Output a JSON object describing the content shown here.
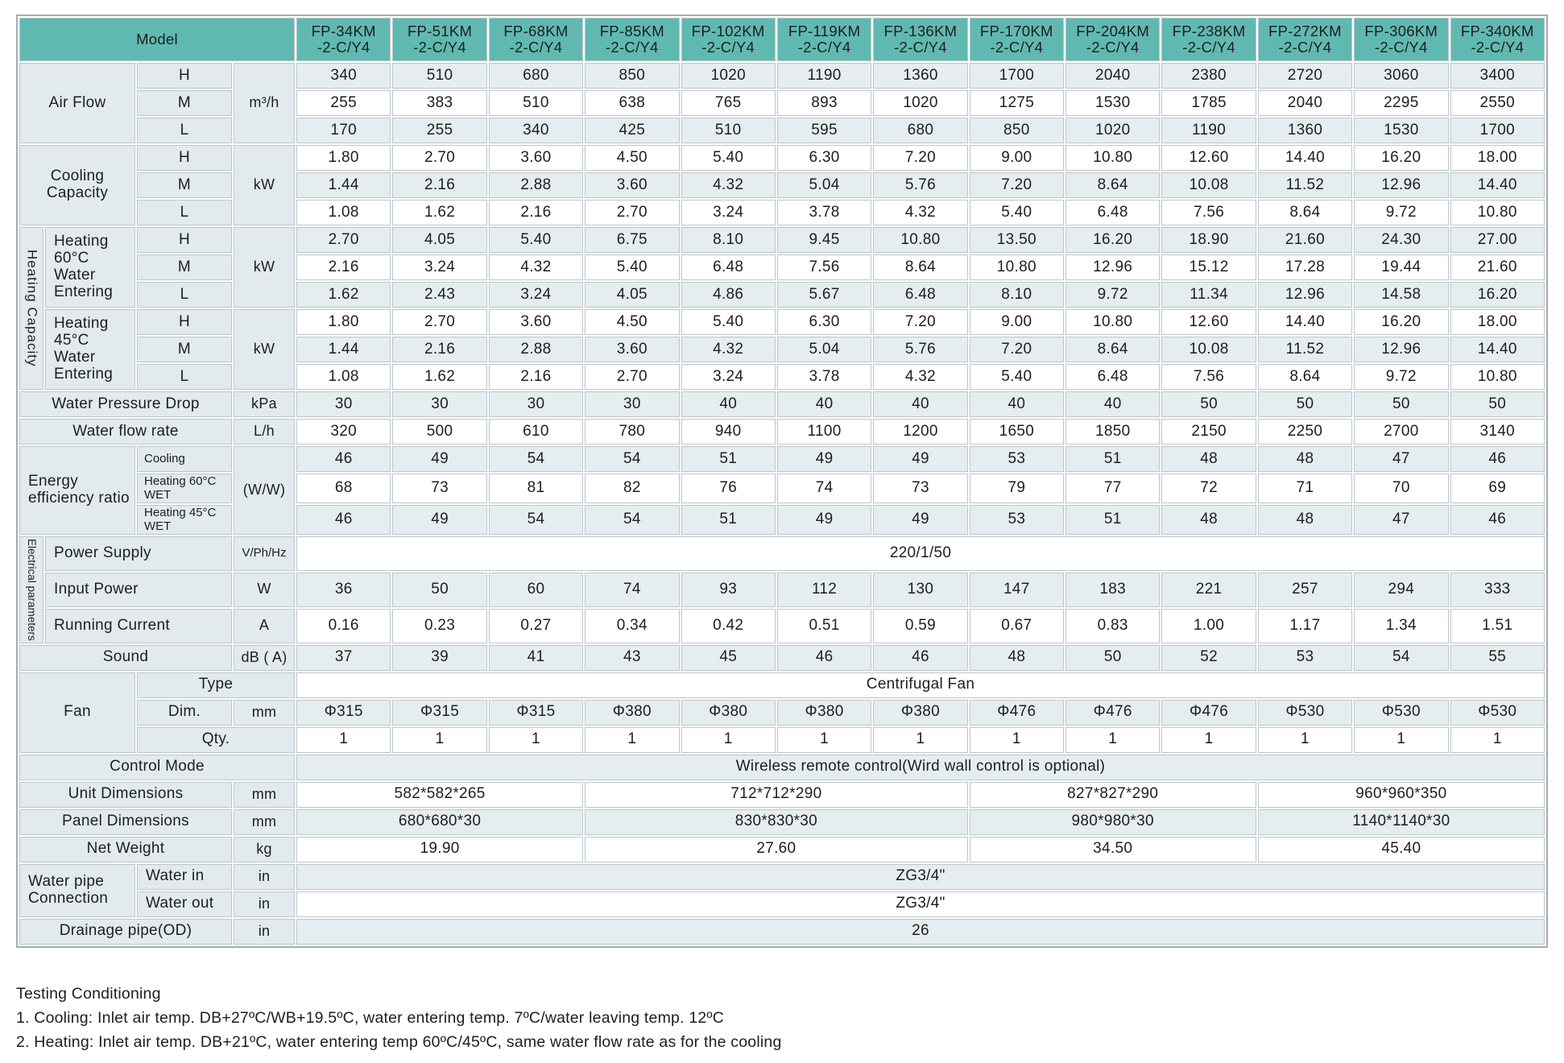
{
  "colors": {
    "header_teal": "#60b9b1",
    "label_bg": "#e2eaee",
    "row_shade": "#e6edf0",
    "row_plain": "#ffffff",
    "grid_border": "#bdc6ca"
  },
  "table": {
    "model_label": "Model",
    "models": [
      "FP-34KM\n-2-C/Y4",
      "FP-51KM\n-2-C/Y4",
      "FP-68KM\n-2-C/Y4",
      "FP-85KM\n-2-C/Y4",
      "FP-102KM\n-2-C/Y4",
      "FP-119KM\n-2-C/Y4",
      "FP-136KM\n-2-C/Y4",
      "FP-170KM\n-2-C/Y4",
      "FP-204KM\n-2-C/Y4",
      "FP-238KM\n-2-C/Y4",
      "FP-272KM\n-2-C/Y4",
      "FP-306KM\n-2-C/Y4",
      "FP-340KM\n-2-C/Y4"
    ],
    "rows": [
      {
        "name": "row-air-flow-h",
        "labels": [
          {
            "t": "Air Flow",
            "cs": 2,
            "rs": 3
          },
          {
            "t": "H"
          },
          {
            "t": "m³/h",
            "rs": 3,
            "cls": "unit",
            "n": "unit-cell"
          }
        ],
        "values": [
          "340",
          "510",
          "680",
          "850",
          "1020",
          "1190",
          "1360",
          "1700",
          "2040",
          "2380",
          "2720",
          "3060",
          "3400"
        ]
      },
      {
        "name": "row-air-flow-m",
        "labels": [
          {
            "t": "M"
          }
        ],
        "values": [
          "255",
          "383",
          "510",
          "638",
          "765",
          "893",
          "1020",
          "1275",
          "1530",
          "1785",
          "2040",
          "2295",
          "2550"
        ]
      },
      {
        "name": "row-air-flow-l",
        "labels": [
          {
            "t": "L"
          }
        ],
        "values": [
          "170",
          "255",
          "340",
          "425",
          "510",
          "595",
          "680",
          "850",
          "1020",
          "1190",
          "1360",
          "1530",
          "1700"
        ]
      },
      {
        "name": "row-cooling-h",
        "labels": [
          {
            "t": "Cooling Capacity",
            "cs": 2,
            "rs": 3
          },
          {
            "t": "H"
          },
          {
            "t": "kW",
            "rs": 3,
            "cls": "unit",
            "n": "unit-cell"
          }
        ],
        "values": [
          "1.80",
          "2.70",
          "3.60",
          "4.50",
          "5.40",
          "6.30",
          "7.20",
          "9.00",
          "10.80",
          "12.60",
          "14.40",
          "16.20",
          "18.00"
        ]
      },
      {
        "name": "row-cooling-m",
        "labels": [
          {
            "t": "M"
          }
        ],
        "values": [
          "1.44",
          "2.16",
          "2.88",
          "3.60",
          "4.32",
          "5.04",
          "5.76",
          "7.20",
          "8.64",
          "10.08",
          "11.52",
          "12.96",
          "14.40"
        ]
      },
      {
        "name": "row-cooling-l",
        "labels": [
          {
            "t": "L"
          }
        ],
        "values": [
          "1.08",
          "1.62",
          "2.16",
          "2.70",
          "3.24",
          "3.78",
          "4.32",
          "5.40",
          "6.48",
          "7.56",
          "8.64",
          "9.72",
          "10.80"
        ]
      },
      {
        "name": "row-heating60-h",
        "labels": [
          {
            "t": "Heating Capacity",
            "rs": 6,
            "cls": "vert"
          },
          {
            "t": "Heating 60°C Water Entering",
            "rs": 3,
            "cls": "leftpad"
          },
          {
            "t": "H"
          },
          {
            "t": "kW",
            "rs": 3,
            "cls": "unit",
            "n": "unit-cell"
          }
        ],
        "values": [
          "2.70",
          "4.05",
          "5.40",
          "6.75",
          "8.10",
          "9.45",
          "10.80",
          "13.50",
          "16.20",
          "18.90",
          "21.60",
          "24.30",
          "27.00"
        ]
      },
      {
        "name": "row-heating60-m",
        "labels": [
          {
            "t": "M"
          }
        ],
        "values": [
          "2.16",
          "3.24",
          "4.32",
          "5.40",
          "6.48",
          "7.56",
          "8.64",
          "10.80",
          "12.96",
          "15.12",
          "17.28",
          "19.44",
          "21.60"
        ]
      },
      {
        "name": "row-heating60-l",
        "labels": [
          {
            "t": "L"
          }
        ],
        "values": [
          "1.62",
          "2.43",
          "3.24",
          "4.05",
          "4.86",
          "5.67",
          "6.48",
          "8.10",
          "9.72",
          "11.34",
          "12.96",
          "14.58",
          "16.20"
        ]
      },
      {
        "name": "row-heating45-h",
        "labels": [
          {
            "t": "Heating 45°C Water Entering",
            "rs": 3,
            "cls": "leftpad"
          },
          {
            "t": "H"
          },
          {
            "t": "kW",
            "rs": 3,
            "cls": "unit",
            "n": "unit-cell"
          }
        ],
        "values": [
          "1.80",
          "2.70",
          "3.60",
          "4.50",
          "5.40",
          "6.30",
          "7.20",
          "9.00",
          "10.80",
          "12.60",
          "14.40",
          "16.20",
          "18.00"
        ]
      },
      {
        "name": "row-heating45-m",
        "labels": [
          {
            "t": "M"
          }
        ],
        "values": [
          "1.44",
          "2.16",
          "2.88",
          "3.60",
          "4.32",
          "5.04",
          "5.76",
          "7.20",
          "8.64",
          "10.08",
          "11.52",
          "12.96",
          "14.40"
        ]
      },
      {
        "name": "row-heating45-l",
        "labels": [
          {
            "t": "L"
          }
        ],
        "values": [
          "1.08",
          "1.62",
          "2.16",
          "2.70",
          "3.24",
          "3.78",
          "4.32",
          "5.40",
          "6.48",
          "7.56",
          "8.64",
          "9.72",
          "10.80"
        ]
      },
      {
        "name": "row-water-pressure-drop",
        "labels": [
          {
            "t": "Water Pressure Drop",
            "cs": 3
          },
          {
            "t": "kPa",
            "cls": "unit",
            "n": "unit-cell"
          }
        ],
        "values": [
          "30",
          "30",
          "30",
          "30",
          "40",
          "40",
          "40",
          "40",
          "40",
          "50",
          "50",
          "50",
          "50"
        ]
      },
      {
        "name": "row-water-flow-rate",
        "labels": [
          {
            "t": "Water flow rate",
            "cs": 3
          },
          {
            "t": "L/h",
            "cls": "unit",
            "n": "unit-cell"
          }
        ],
        "values": [
          "320",
          "500",
          "610",
          "780",
          "940",
          "1100",
          "1200",
          "1650",
          "1850",
          "2150",
          "2250",
          "2700",
          "3140"
        ]
      },
      {
        "name": "row-eer-cooling",
        "labels": [
          {
            "t": "Energy efficiency ratio",
            "cs": 2,
            "rs": 3,
            "cls": "leftpad"
          },
          {
            "t": "Cooling",
            "cls": "sub"
          },
          {
            "t": "(W/W)",
            "rs": 3,
            "cls": "unit",
            "n": "unit-cell"
          }
        ],
        "values": [
          "46",
          "49",
          "54",
          "54",
          "51",
          "49",
          "49",
          "53",
          "51",
          "48",
          "48",
          "47",
          "46"
        ]
      },
      {
        "name": "row-eer-heating60",
        "labels": [
          {
            "t": "Heating 60°C WET",
            "cls": "sub"
          }
        ],
        "values": [
          "68",
          "73",
          "81",
          "82",
          "76",
          "74",
          "73",
          "79",
          "77",
          "72",
          "71",
          "70",
          "69"
        ]
      },
      {
        "name": "row-eer-heating45",
        "labels": [
          {
            "t": "Heating 45°C WET",
            "cls": "sub"
          }
        ],
        "values": [
          "46",
          "49",
          "54",
          "54",
          "51",
          "49",
          "49",
          "53",
          "51",
          "48",
          "48",
          "47",
          "46"
        ]
      },
      {
        "name": "row-power-supply",
        "labels": [
          {
            "t": "Electrical parameters",
            "rs": 3,
            "cls": "vert sm"
          },
          {
            "t": "Power Supply",
            "cs": 2,
            "cls": "leftpad"
          },
          {
            "t": "V/Ph/Hz",
            "cls": "subu",
            "n": "unit-cell"
          }
        ],
        "span": "220/1/50"
      },
      {
        "name": "row-input-power",
        "labels": [
          {
            "t": "Input Power",
            "cs": 2,
            "cls": "leftpad"
          },
          {
            "t": "W",
            "cls": "unit",
            "n": "unit-cell"
          }
        ],
        "values": [
          "36",
          "50",
          "60",
          "74",
          "93",
          "112",
          "130",
          "147",
          "183",
          "221",
          "257",
          "294",
          "333"
        ]
      },
      {
        "name": "row-running-current",
        "labels": [
          {
            "t": "Running Current",
            "cs": 2,
            "cls": "leftpad"
          },
          {
            "t": "A",
            "cls": "unit",
            "n": "unit-cell"
          }
        ],
        "values": [
          "0.16",
          "0.23",
          "0.27",
          "0.34",
          "0.42",
          "0.51",
          "0.59",
          "0.67",
          "0.83",
          "1.00",
          "1.17",
          "1.34",
          "1.51"
        ]
      },
      {
        "name": "row-sound",
        "labels": [
          {
            "t": "Sound",
            "cs": 3
          },
          {
            "t": "dB ( A)",
            "cls": "unit",
            "n": "unit-cell"
          }
        ],
        "values": [
          "37",
          "39",
          "41",
          "43",
          "45",
          "46",
          "46",
          "48",
          "50",
          "52",
          "53",
          "54",
          "55"
        ]
      },
      {
        "name": "row-fan-type",
        "labels": [
          {
            "t": "Fan",
            "cs": 2,
            "rs": 3
          },
          {
            "t": "Type",
            "cs": 2
          }
        ],
        "span": "Centrifugal Fan"
      },
      {
        "name": "row-fan-dim",
        "labels": [
          {
            "t": "Dim."
          },
          {
            "t": "mm",
            "cls": "unit",
            "n": "unit-cell"
          }
        ],
        "values": [
          "Φ315",
          "Φ315",
          "Φ315",
          "Φ380",
          "Φ380",
          "Φ380",
          "Φ380",
          "Φ476",
          "Φ476",
          "Φ476",
          "Φ530",
          "Φ530",
          "Φ530"
        ]
      },
      {
        "name": "row-fan-qty",
        "labels": [
          {
            "t": "Qty.",
            "cs": 2
          }
        ],
        "values": [
          "1",
          "1",
          "1",
          "1",
          "1",
          "1",
          "1",
          "1",
          "1",
          "1",
          "1",
          "1",
          "1"
        ]
      },
      {
        "name": "row-control-mode",
        "labels": [
          {
            "t": "Control Mode",
            "cs": 4
          }
        ],
        "span": "Wireless remote control(Wird wall control is optional)"
      },
      {
        "name": "row-unit-dimensions",
        "labels": [
          {
            "t": "Unit Dimensions",
            "cs": 3
          },
          {
            "t": "mm",
            "cls": "unit",
            "n": "unit-cell"
          }
        ],
        "groups": [
          {
            "t": "582*582*265",
            "cs": 3
          },
          {
            "t": "712*712*290",
            "cs": 4
          },
          {
            "t": "827*827*290",
            "cs": 3
          },
          {
            "t": "960*960*350",
            "cs": 3
          }
        ]
      },
      {
        "name": "row-panel-dimensions",
        "labels": [
          {
            "t": "Panel Dimensions",
            "cs": 3
          },
          {
            "t": "mm",
            "cls": "unit",
            "n": "unit-cell"
          }
        ],
        "groups": [
          {
            "t": "680*680*30",
            "cs": 3
          },
          {
            "t": "830*830*30",
            "cs": 4
          },
          {
            "t": "980*980*30",
            "cs": 3
          },
          {
            "t": "1140*1140*30",
            "cs": 3
          }
        ]
      },
      {
        "name": "row-net-weight",
        "labels": [
          {
            "t": "Net Weight",
            "cs": 3
          },
          {
            "t": "kg",
            "cls": "unit",
            "n": "unit-cell"
          }
        ],
        "groups": [
          {
            "t": "19.90",
            "cs": 3
          },
          {
            "t": "27.60",
            "cs": 4
          },
          {
            "t": "34.50",
            "cs": 3
          },
          {
            "t": "45.40",
            "cs": 3
          }
        ]
      },
      {
        "name": "row-water-in",
        "labels": [
          {
            "t": "Water pipe Connection",
            "cs": 2,
            "rs": 2,
            "cls": "leftpad"
          },
          {
            "t": "Water in",
            "cls": "leftpad"
          },
          {
            "t": "in",
            "cls": "unit",
            "n": "unit-cell"
          }
        ],
        "span": "ZG3/4\""
      },
      {
        "name": "row-water-out",
        "labels": [
          {
            "t": "Water out",
            "cls": "leftpad"
          },
          {
            "t": "in",
            "cls": "unit",
            "n": "unit-cell"
          }
        ],
        "span": "ZG3/4\""
      },
      {
        "name": "row-drainage-pipe",
        "labels": [
          {
            "t": "Drainage pipe(OD)",
            "cs": 3
          },
          {
            "t": "in",
            "cls": "unit",
            "n": "unit-cell"
          }
        ],
        "span": "26"
      }
    ]
  },
  "notes": {
    "title": "Testing Conditioning",
    "line1": "1. Cooling: Inlet air temp. DB+27ºC/WB+19.5ºC, water entering temp. 7ºC/water leaving temp. 12ºC",
    "line2": "2. Heating: Inlet air temp. DB+21ºC, water entering temp 60ºC/45ºC, same water flow rate as for the cooling"
  }
}
